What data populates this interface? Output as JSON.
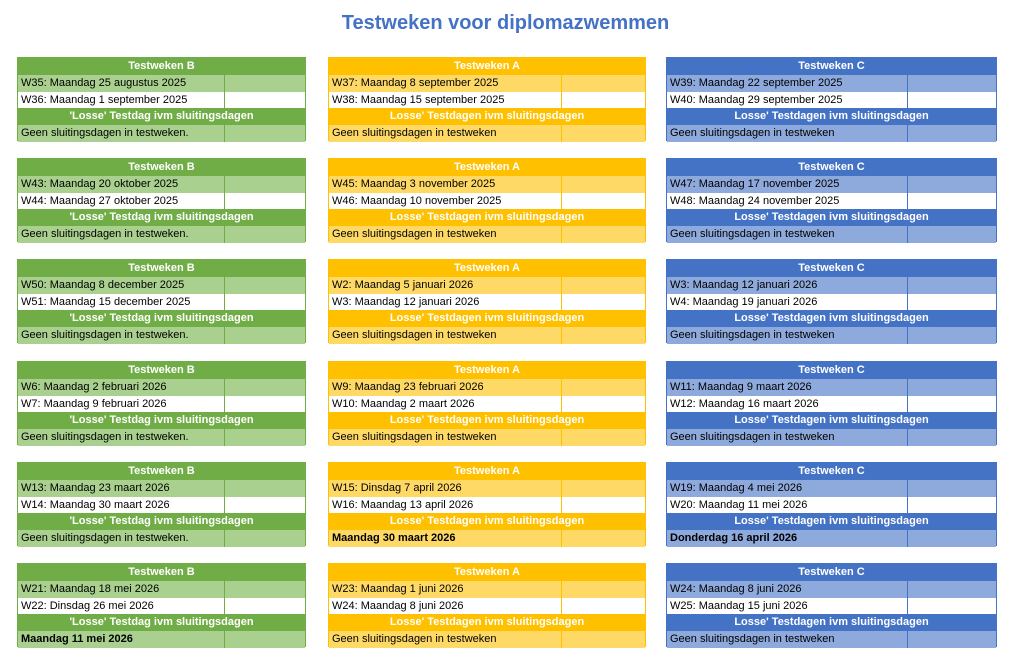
{
  "title": "Testweken voor diplomazwemmen",
  "colors": {
    "green": "#70AD47",
    "yellow": "#FFC000",
    "blue": "#4472C4",
    "title": "#4472C4"
  },
  "columns": [
    {
      "key": "b",
      "blocks": [
        {
          "header": "Testweken B",
          "w1": "W35: Maandag 25 augustus 2025",
          "w2": "W36: Maandag 1 september 2025",
          "sub": "'Losse' Testdag ivm sluitingsdagen",
          "note": "Geen sluitingsdagen in testweken."
        },
        {
          "header": "Testweken B",
          "w1": "W43: Maandag 20 oktober 2025",
          "w2": "W44: Maandag 27 oktober 2025",
          "sub": "'Losse' Testdag ivm sluitingsdagen",
          "note": "Geen sluitingsdagen in testweken."
        },
        {
          "header": "Testweken B",
          "w1": "W50: Maandag 8 december 2025",
          "w2": "W51: Maandag 15 december 2025",
          "sub": "'Losse' Testdag ivm sluitingsdagen",
          "note": "Geen sluitingsdagen in testweken."
        },
        {
          "header": "Testweken B",
          "w1": "W6: Maandag 2 februari 2026",
          "w2": "W7: Maandag 9 februari 2026",
          "sub": "'Losse' Testdag ivm sluitingsdagen",
          "note": "Geen sluitingsdagen in testweken."
        },
        {
          "header": "Testweken B",
          "w1": "W13: Maandag 23 maart 2026",
          "w2": "W14: Maandag 30 maart 2026",
          "sub": "'Losse' Testdag ivm sluitingsdagen",
          "note": "Geen sluitingsdagen in testweken."
        },
        {
          "header": "Testweken B",
          "w1": "W21: Maandag 18 mei 2026",
          "w2": "W22: Dinsdag 26 mei 2026",
          "sub": "'Losse' Testdag ivm sluitingsdagen",
          "note": "Maandag 11 mei 2026",
          "note_bold": true
        }
      ]
    },
    {
      "key": "a",
      "blocks": [
        {
          "header": "Testweken A",
          "w1": "W37: Maandag 8 september 2025",
          "w2": "W38: Maandag 15 september 2025",
          "sub": "Losse' Testdagen ivm sluitingsdagen",
          "note": "Geen sluitingsdagen in testweken"
        },
        {
          "header": "Testweken A",
          "w1": "W45: Maandag 3 november 2025",
          "w2": "W46: Maandag 10 november 2025",
          "sub": "Losse' Testdagen ivm sluitingsdagen",
          "note": "Geen sluitingsdagen in testweken"
        },
        {
          "header": "Testweken A",
          "w1": "W2: Maandag 5 januari 2026",
          "w2": "W3: Maandag 12 januari 2026",
          "sub": "Losse' Testdagen ivm sluitingsdagen",
          "note": "Geen sluitingsdagen in testweken"
        },
        {
          "header": "Testweken A",
          "w1": "W9: Maandag 23 februari 2026",
          "w2": "W10: Maandag 2 maart 2026",
          "sub": "Losse' Testdagen ivm sluitingsdagen",
          "note": "Geen sluitingsdagen in testweken"
        },
        {
          "header": "Testweken A",
          "w1": "W15: Dinsdag 7 april 2026",
          "w2": "W16: Maandag 13 april 2026",
          "sub": "Losse' Testdagen ivm sluitingsdagen",
          "note": "Maandag 30 maart 2026",
          "note_bold": true
        },
        {
          "header": "Testweken A",
          "w1": "W23: Maandag 1 juni 2026",
          "w2": "W24: Maandag 8 juni 2026",
          "sub": "Losse' Testdagen ivm sluitingsdagen",
          "note": "Geen sluitingsdagen in testweken"
        }
      ]
    },
    {
      "key": "c",
      "blocks": [
        {
          "header": "Testweken C",
          "w1": "W39: Maandag 22 september 2025",
          "w2": "W40: Maandag 29 september 2025",
          "sub": "Losse' Testdagen ivm sluitingsdagen",
          "note": "Geen sluitingsdagen in testweken"
        },
        {
          "header": "Testweken C",
          "w1": "W47: Maandag 17 november 2025",
          "w2": "W48: Maandag 24 november 2025",
          "sub": "Losse' Testdagen ivm sluitingsdagen",
          "note": "Geen sluitingsdagen in testweken"
        },
        {
          "header": "Testweken C",
          "w1": "W3: Maandag 12 januari 2026",
          "w2": "W4: Maandag 19  januari 2026",
          "sub": "Losse' Testdagen ivm sluitingsdagen",
          "note": "Geen sluitingsdagen in testweken"
        },
        {
          "header": "Testweken C",
          "w1": "W11: Maandag 9 maart 2026",
          "w2": "W12: Maandag 16 maart 2026",
          "sub": "Losse' Testdagen ivm sluitingsdagen",
          "note": "Geen sluitingsdagen in testweken"
        },
        {
          "header": "Testweken C",
          "w1": "W19: Maandag 4 mei 2026",
          "w2": "W20: Maandag 11 mei 2026",
          "sub": "Losse' Testdagen ivm sluitingsdagen",
          "note": "Donderdag 16 april 2026",
          "note_bold": true
        },
        {
          "header": "Testweken C",
          "w1": "W24: Maandag 8 juni 2026",
          "w2": "W25: Maandag 15 juni 2026",
          "sub": "Losse' Testdagen ivm sluitingsdagen",
          "note": "Geen sluitingsdagen in testweken"
        }
      ]
    }
  ]
}
